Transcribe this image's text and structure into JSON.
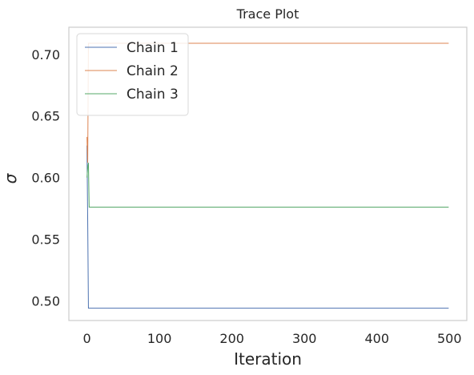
{
  "chart_data": {
    "type": "line",
    "title": "Trace Plot",
    "xlabel": "Iteration",
    "ylabel": "σ",
    "xlim": [
      -25,
      524
    ],
    "ylim": [
      0.484,
      0.722
    ],
    "x_ticks": [
      0,
      100,
      200,
      300,
      400,
      500
    ],
    "y_ticks": [
      0.5,
      0.55,
      0.6,
      0.65,
      0.7
    ],
    "y_tick_labels": [
      "0.50",
      "0.55",
      "0.60",
      "0.65",
      "0.70"
    ],
    "grid": false,
    "legend_position": "top-left",
    "series": [
      {
        "name": "Chain 1",
        "color": "#4c72b0",
        "points": [
          [
            0,
            0.626
          ],
          [
            1,
            0.565
          ],
          [
            2,
            0.494
          ],
          [
            499,
            0.494
          ]
        ]
      },
      {
        "name": "Chain 2",
        "color": "#dd8452",
        "points": [
          [
            0,
            0.633
          ],
          [
            1,
            0.612
          ],
          [
            2,
            0.709
          ],
          [
            499,
            0.709
          ]
        ]
      },
      {
        "name": "Chain 3",
        "color": "#55a868",
        "points": [
          [
            0,
            0.6
          ],
          [
            1,
            0.608
          ],
          [
            2,
            0.612
          ],
          [
            3,
            0.576
          ],
          [
            499,
            0.576
          ]
        ]
      }
    ]
  }
}
